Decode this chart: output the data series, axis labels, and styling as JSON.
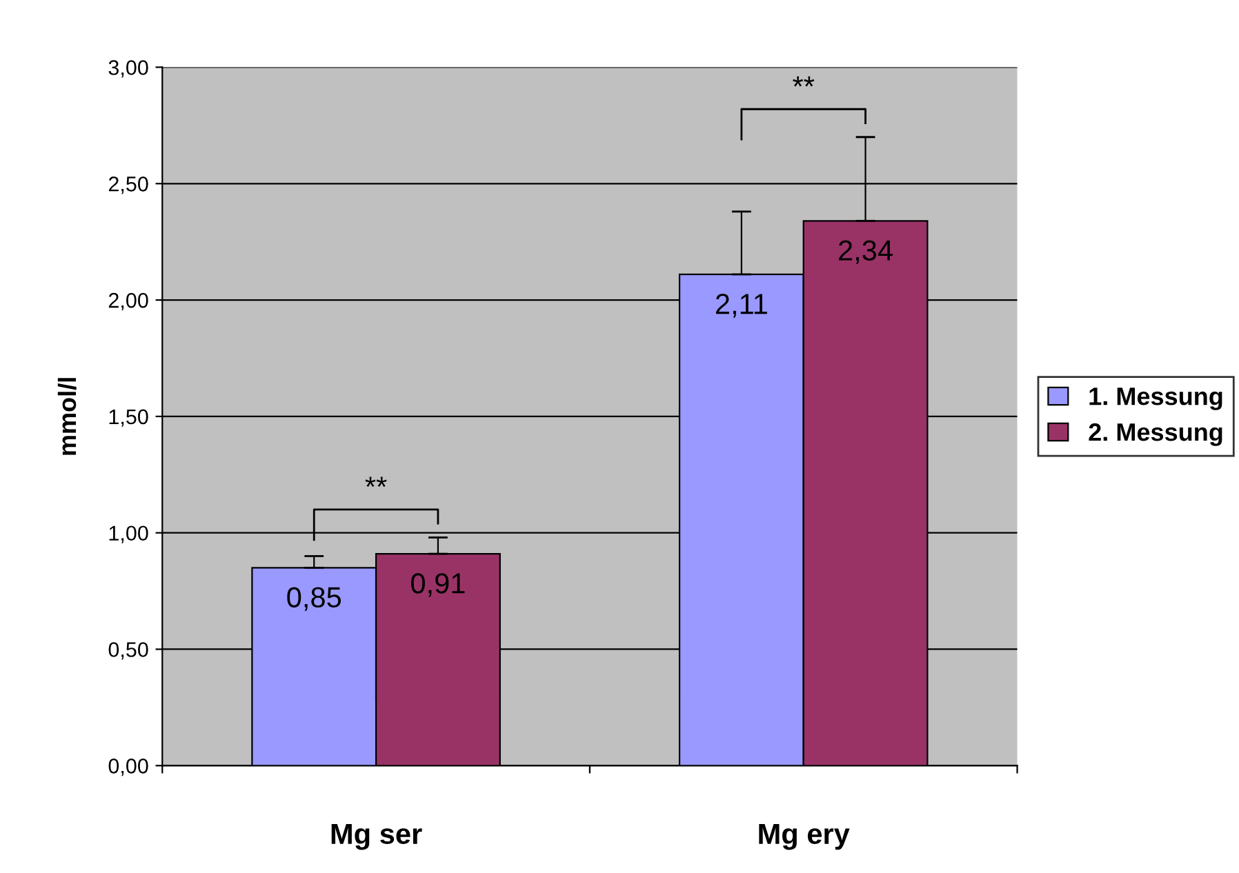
{
  "chart_data": {
    "type": "bar",
    "ylabel": "mmol/l",
    "categories": [
      "Mg ser",
      "Mg ery"
    ],
    "series": [
      {
        "name": "1. Messung",
        "color": "#9999ff",
        "values": [
          0.85,
          2.11
        ],
        "errors": [
          [
            0.85,
            0.9
          ],
          [
            2.11,
            2.38
          ]
        ],
        "value_labels": [
          "0,85",
          "2,11"
        ]
      },
      {
        "name": "2. Messung",
        "color": "#993366",
        "values": [
          0.91,
          2.34
        ],
        "errors": [
          [
            0.91,
            0.98
          ],
          [
            2.34,
            2.7
          ]
        ],
        "value_labels": [
          "0,91",
          "2,34"
        ]
      }
    ],
    "ylim": [
      0,
      3
    ],
    "yticks": [
      {
        "value": 0,
        "label": "0,00"
      },
      {
        "value": 0.5,
        "label": "0,50"
      },
      {
        "value": 1,
        "label": "1,00"
      },
      {
        "value": 1.5,
        "label": "1,50"
      },
      {
        "value": 2,
        "label": "2,00"
      },
      {
        "value": 2.5,
        "label": "2,50"
      },
      {
        "value": 3,
        "label": "3,00"
      }
    ],
    "grid": "y",
    "legend": "right",
    "annotations": [
      "**",
      "**"
    ]
  }
}
